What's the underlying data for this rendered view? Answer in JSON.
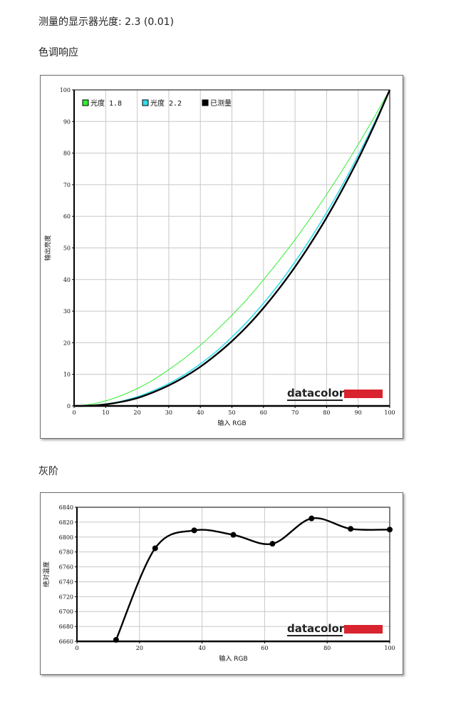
{
  "header": {
    "gamma_label": "测量的显示器光度:",
    "gamma_value": "2.3 (0.01)",
    "tone_title": "色调响应",
    "gray_title": "灰阶"
  },
  "brand": {
    "logo_text": "datacolor",
    "logo_bar_color": "#d9232e"
  },
  "chart_data": [
    {
      "type": "line",
      "xlabel": "输入 RGB",
      "ylabel": "输出亮度",
      "xlim": [
        0,
        100
      ],
      "ylim": [
        0,
        100
      ],
      "xticks": [
        0,
        10,
        20,
        30,
        40,
        50,
        60,
        70,
        80,
        90,
        100
      ],
      "yticks": [
        0,
        10,
        20,
        30,
        40,
        50,
        60,
        70,
        80,
        90,
        100
      ],
      "grid": true,
      "legend_position": "top-left",
      "x": [
        0,
        5,
        10,
        15,
        20,
        25,
        30,
        35,
        40,
        45,
        50,
        55,
        60,
        65,
        70,
        75,
        80,
        85,
        90,
        95,
        100
      ],
      "series": [
        {
          "name": "光度 1.8",
          "color": "#33ee33",
          "values": [
            0,
            0.5,
            1.6,
            3.3,
            5.5,
            8.2,
            11.5,
            15.1,
            19.2,
            23.8,
            28.7,
            34.0,
            39.9,
            46.1,
            52.6,
            59.6,
            66.9,
            74.6,
            82.7,
            91.2,
            100
          ]
        },
        {
          "name": "光度 2.2",
          "color": "#33ddee",
          "values": [
            0,
            0.1,
            0.6,
            1.5,
            2.9,
            4.8,
            7.1,
            9.9,
            13.3,
            17.2,
            21.8,
            26.8,
            32.5,
            38.7,
            45.6,
            53.1,
            61.2,
            69.9,
            79.3,
            89.3,
            100
          ]
        },
        {
          "name": "已测量",
          "color": "#000000",
          "values": [
            0,
            0.1,
            0.5,
            1.3,
            2.5,
            4.3,
            6.5,
            9.2,
            12.4,
            16.2,
            20.5,
            25.4,
            31.0,
            37.2,
            44.0,
            51.5,
            59.6,
            68.5,
            78.1,
            88.6,
            100
          ]
        }
      ]
    },
    {
      "type": "line",
      "xlabel": "输入 RGB",
      "ylabel": "绝对温度",
      "xlim": [
        0,
        100
      ],
      "ylim": [
        6660,
        6840
      ],
      "xticks": [
        0,
        20,
        40,
        60,
        80,
        100
      ],
      "yticks": [
        6660,
        6680,
        6700,
        6720,
        6740,
        6760,
        6780,
        6800,
        6820,
        6840
      ],
      "grid": true,
      "series": [
        {
          "color": "#000000",
          "x": [
            12.5,
            25,
            37.5,
            50,
            62.5,
            75,
            87.5,
            100
          ],
          "values": [
            6662,
            6785,
            6809,
            6803,
            6791,
            6825,
            6811,
            6810
          ]
        }
      ]
    }
  ]
}
